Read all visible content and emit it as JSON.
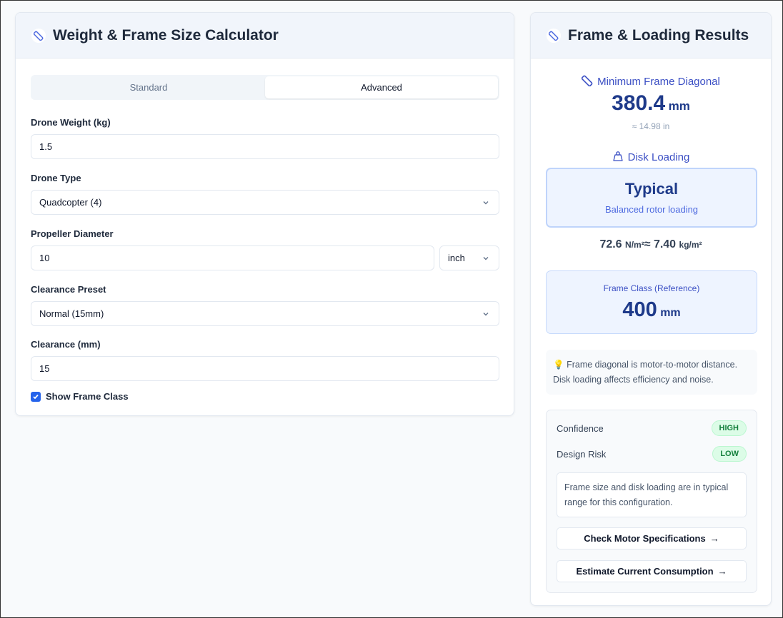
{
  "calculator": {
    "title": "Weight & Frame Size Calculator",
    "tabs": [
      "Standard",
      "Advanced"
    ],
    "active_tab": "Advanced",
    "weight_label": "Drone Weight (kg)",
    "weight_value": "1.5",
    "type_label": "Drone Type",
    "type_value": "Quadcopter (4)",
    "prop_label": "Propeller Diameter",
    "prop_value": "10",
    "prop_unit": "inch",
    "preset_label": "Clearance Preset",
    "preset_value": "Normal (15mm)",
    "clearance_label": "Clearance (mm)",
    "clearance_value": "15",
    "show_frame_class_label": "Show Frame Class",
    "show_frame_class": true
  },
  "results": {
    "title": "Frame & Loading Results",
    "diag_label": "Minimum Frame Diagonal",
    "diag_value": "380.4",
    "diag_unit": "mm",
    "diag_in": "≈ 14.98 in",
    "disk_label": "Disk Loading",
    "disk_class": "Typical",
    "disk_desc": "Balanced rotor loading",
    "disk_nm": "72.6",
    "disk_nm_unit": "N/m²",
    "approx": "≈",
    "disk_kg": "7.40",
    "disk_kg_unit": "kg/m²",
    "class_label": "Frame Class (Reference)",
    "class_value": "400",
    "class_unit": "mm",
    "tip": "Frame diagonal is motor-to-motor distance. Disk loading affects efficiency and noise.",
    "confidence_label": "Confidence",
    "confidence": "HIGH",
    "risk_label": "Design Risk",
    "risk": "LOW",
    "summary": "Frame size and disk loading are in typical range for this configuration.",
    "btn_motor": "Check Motor Specifications",
    "btn_current": "Estimate Current Consumption",
    "colors": {
      "accent": "#3b4fc4",
      "badge_green": "#15803d"
    }
  }
}
